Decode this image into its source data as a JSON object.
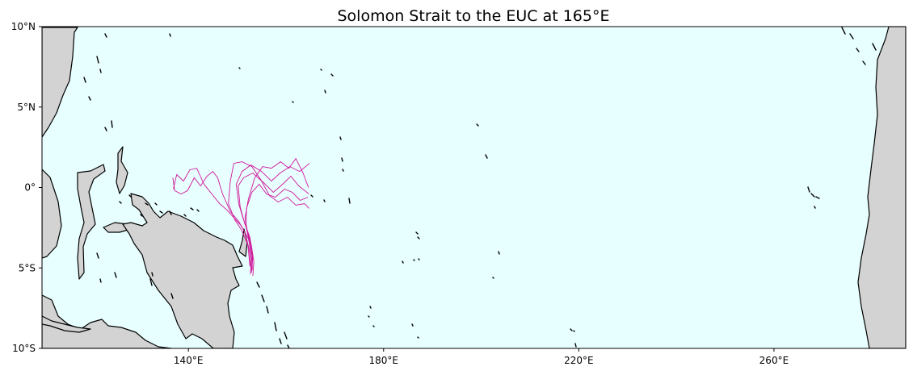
{
  "map": {
    "title": "Solomon Strait to the EUC at 165°E",
    "extent": {
      "lon_min": 110,
      "lon_max": 287,
      "lat_min": -10,
      "lat_max": 10
    },
    "colors": {
      "ocean": "#e8ffff",
      "land": "#d3d3d3",
      "coastline": "#000000",
      "trajectory": "#d0179a"
    },
    "lat_ticks": [
      {
        "value": 10,
        "label": "10°N"
      },
      {
        "value": 5,
        "label": "5°N"
      },
      {
        "value": 0,
        "label": "0°"
      },
      {
        "value": -5,
        "label": "5°S"
      },
      {
        "value": -10,
        "label": "10°S"
      }
    ],
    "lon_ticks": [
      {
        "value": 140,
        "label": "140°E"
      },
      {
        "value": 180,
        "label": "180°E"
      },
      {
        "value": 220,
        "label": "220°E"
      },
      {
        "value": 260,
        "label": "260°E"
      }
    ],
    "trajectories": [
      [
        [
          153.2,
          -5.5
        ],
        [
          153.4,
          -4.6
        ],
        [
          152.9,
          -3.6
        ],
        [
          152.0,
          -2.6
        ],
        [
          151.2,
          -1.9
        ],
        [
          150.3,
          -1.0
        ],
        [
          149.8,
          0.2
        ],
        [
          151.0,
          1.0
        ],
        [
          152.8,
          1.4
        ],
        [
          155.0,
          1.0
        ],
        [
          157.0,
          0.4
        ],
        [
          158.8,
          0.9
        ],
        [
          160.8,
          1.3
        ],
        [
          162.8,
          1.0
        ],
        [
          164.8,
          1.5
        ]
      ],
      [
        [
          153.0,
          -5.2
        ],
        [
          153.2,
          -4.2
        ],
        [
          152.6,
          -3.1
        ],
        [
          151.5,
          -2.2
        ],
        [
          150.6,
          -1.2
        ],
        [
          150.2,
          0.1
        ],
        [
          151.3,
          0.6
        ],
        [
          153.2,
          0.9
        ],
        [
          155.4,
          0.3
        ],
        [
          157.4,
          -0.3
        ],
        [
          159.3,
          0.2
        ],
        [
          161.0,
          0.7
        ],
        [
          162.6,
          0.1
        ],
        [
          164.7,
          -0.4
        ]
      ],
      [
        [
          152.8,
          -5.0
        ],
        [
          152.5,
          -3.9
        ],
        [
          151.6,
          -2.8
        ],
        [
          150.3,
          -2.1
        ],
        [
          148.6,
          -1.5
        ],
        [
          147.0,
          -0.4
        ],
        [
          146.0,
          0.6
        ],
        [
          145.0,
          1.0
        ],
        [
          143.8,
          0.7
        ],
        [
          142.5,
          0.1
        ],
        [
          141.2,
          0.6
        ],
        [
          139.8,
          -0.2
        ],
        [
          138.5,
          -0.4
        ],
        [
          137.2,
          -0.2
        ],
        [
          136.8,
          0.6
        ]
      ],
      [
        [
          152.6,
          -4.9
        ],
        [
          152.2,
          -3.6
        ],
        [
          151.0,
          -2.7
        ],
        [
          149.5,
          -2.0
        ],
        [
          148.2,
          -1.0
        ],
        [
          148.6,
          0.4
        ],
        [
          149.3,
          1.5
        ],
        [
          151.0,
          1.6
        ],
        [
          153.0,
          1.3
        ],
        [
          154.8,
          0.5
        ],
        [
          156.6,
          -0.5
        ],
        [
          158.4,
          -0.9
        ],
        [
          160.3,
          -0.6
        ],
        [
          162.0,
          -1.1
        ],
        [
          163.8,
          -1.0
        ],
        [
          164.7,
          -1.3
        ]
      ],
      [
        [
          152.9,
          -5.3
        ],
        [
          153.1,
          -4.3
        ],
        [
          152.3,
          -3.2
        ],
        [
          150.9,
          -2.4
        ],
        [
          149.4,
          -1.9
        ],
        [
          147.9,
          -1.4
        ],
        [
          146.4,
          -1.0
        ],
        [
          144.8,
          -0.4
        ],
        [
          143.2,
          0.2
        ],
        [
          141.7,
          1.2
        ],
        [
          140.3,
          1.1
        ],
        [
          139.0,
          0.4
        ],
        [
          137.6,
          0.8
        ],
        [
          136.9,
          -0.1
        ]
      ],
      [
        [
          153.1,
          -5.1
        ],
        [
          153.0,
          -3.9
        ],
        [
          152.2,
          -2.9
        ],
        [
          151.6,
          -1.9
        ],
        [
          152.3,
          -0.7
        ],
        [
          153.6,
          0.6
        ],
        [
          155.2,
          1.3
        ],
        [
          157.0,
          1.2
        ],
        [
          158.9,
          1.6
        ],
        [
          160.6,
          1.2
        ],
        [
          162.0,
          1.8
        ],
        [
          163.5,
          0.9
        ],
        [
          164.6,
          0.0
        ]
      ],
      [
        [
          152.7,
          -5.4
        ],
        [
          152.9,
          -4.4
        ],
        [
          152.4,
          -3.3
        ],
        [
          151.8,
          -2.4
        ],
        [
          151.9,
          -1.3
        ],
        [
          153.0,
          -0.3
        ],
        [
          154.5,
          0.2
        ],
        [
          156.0,
          -0.4
        ],
        [
          157.8,
          -0.6
        ],
        [
          159.7,
          -0.1
        ],
        [
          161.3,
          -0.3
        ],
        [
          162.9,
          -0.8
        ],
        [
          164.5,
          -0.6
        ]
      ]
    ]
  }
}
